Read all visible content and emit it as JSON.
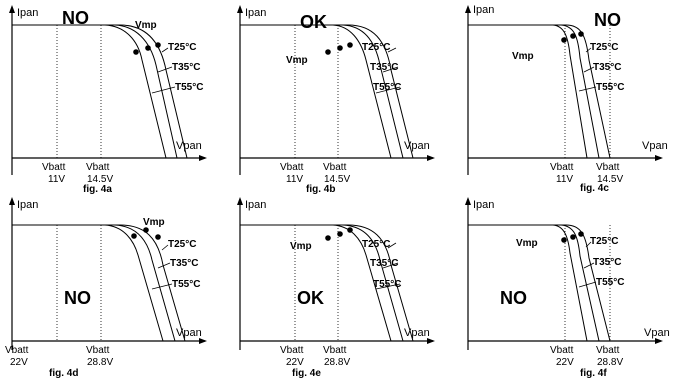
{
  "panels": [
    {
      "caption": "fig. 4a",
      "verdict": "NO",
      "y_axis_label": "Ipan",
      "x_axis_label": "Vpan",
      "vmp_label": "Vmp",
      "temperature_labels": [
        "T25°C",
        "T35°C",
        "T55°C"
      ],
      "vbatt_min": {
        "label": "Vbatt",
        "value": "11V"
      },
      "vbatt_max": {
        "label": "Vbatt",
        "value": "14.5V"
      }
    },
    {
      "caption": "fig. 4b",
      "verdict": "OK",
      "y_axis_label": "Ipan",
      "x_axis_label": "Vpan",
      "vmp_label": "Vmp",
      "temperature_labels": [
        "T25°C",
        "T35°C",
        "T55°C"
      ],
      "vbatt_min": {
        "label": "Vbatt",
        "value": "11V"
      },
      "vbatt_max": {
        "label": "Vbatt",
        "value": "14.5V"
      }
    },
    {
      "caption": "fig. 4c",
      "verdict": "NO",
      "y_axis_label": "Ipan",
      "x_axis_label": "Vpan",
      "vmp_label": "Vmp",
      "temperature_labels": [
        "T25°C",
        "T35°C",
        "T55°C"
      ],
      "vbatt_min": {
        "label": "Vbatt",
        "value": "11V"
      },
      "vbatt_max": {
        "label": "Vbatt",
        "value": "14.5V"
      }
    },
    {
      "caption": "fig. 4d",
      "verdict": "NO",
      "y_axis_label": "Ipan",
      "x_axis_label": "Vpan",
      "vmp_label": "Vmp",
      "temperature_labels": [
        "T25°C",
        "T35°C",
        "T55°C"
      ],
      "vbatt_min": {
        "label": "Vbatt",
        "value": "22V"
      },
      "vbatt_max": {
        "label": "Vbatt",
        "value": "28.8V"
      }
    },
    {
      "caption": "fig. 4e",
      "verdict": "OK",
      "y_axis_label": "Ipan",
      "x_axis_label": "Vpan",
      "vmp_label": "Vmp",
      "temperature_labels": [
        "T25°C",
        "T35°C",
        "T55°C"
      ],
      "vbatt_min": {
        "label": "Vbatt",
        "value": "22V"
      },
      "vbatt_max": {
        "label": "Vbatt",
        "value": "28.8V"
      }
    },
    {
      "caption": "fig. 4f",
      "verdict": "NO",
      "y_axis_label": "Ipan",
      "x_axis_label": "Vpan",
      "vmp_label": "Vmp",
      "temperature_labels": [
        "T25°C",
        "T35°C",
        "T55°C"
      ],
      "vbatt_min": {
        "label": "Vbatt",
        "value": "22V"
      },
      "vbatt_max": {
        "label": "Vbatt",
        "value": "28.8V"
      }
    }
  ]
}
